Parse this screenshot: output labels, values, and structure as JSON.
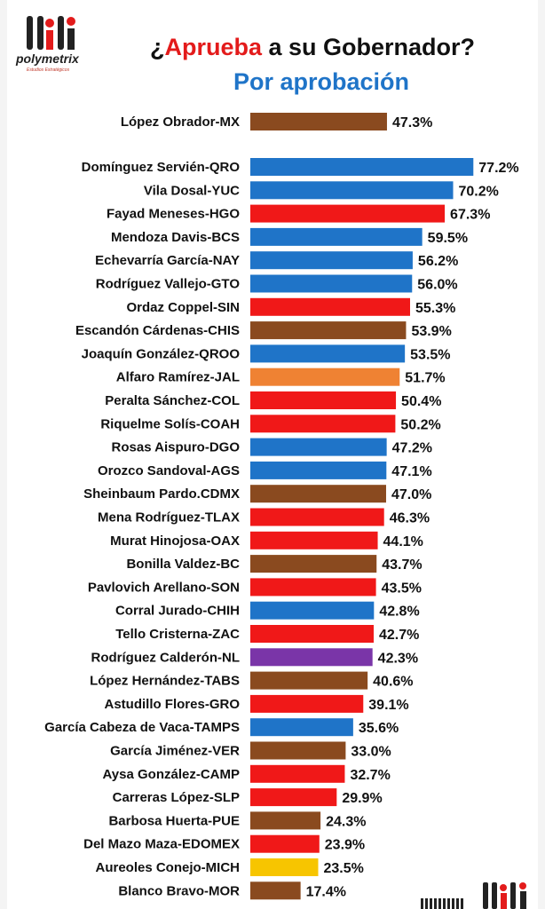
{
  "header": {
    "logo_name": "polymetrix",
    "logo_tagline": "Estudios Estratégicos",
    "title_prefix": "¿",
    "title_accent": "Aprueba",
    "title_rest": " a su Gobernador?",
    "subtitle": "Por aprobación"
  },
  "colors": {
    "brown": "#8a4a1f",
    "blue": "#1f74c8",
    "red": "#f01818",
    "orange": "#ef8233",
    "purple": "#7a35a8",
    "yellow": "#f7c500",
    "accent_red": "#e31b1b"
  },
  "chart_data": {
    "type": "bar",
    "orientation": "horizontal",
    "title": "¿Aprueba a su Gobernador?",
    "subtitle": "Por aprobación",
    "value_suffix": "%",
    "xlim": [
      0,
      80
    ],
    "grid": false,
    "bars": [
      {
        "label": "López Obrador-MX",
        "value": 47.3,
        "display": "47.3%",
        "color": "#8a4a1f"
      },
      {
        "label": "Domínguez Servién-QRO",
        "value": 77.2,
        "display": "77.2%",
        "color": "#1f74c8"
      },
      {
        "label": "Vila Dosal-YUC",
        "value": 70.2,
        "display": "70.2%",
        "color": "#1f74c8"
      },
      {
        "label": "Fayad Meneses-HGO",
        "value": 67.3,
        "display": "67.3%",
        "color": "#f01818"
      },
      {
        "label": "Mendoza Davis-BCS",
        "value": 59.5,
        "display": "59.5%",
        "color": "#1f74c8"
      },
      {
        "label": "Echevarría García-NAY",
        "value": 56.2,
        "display": "56.2%",
        "color": "#1f74c8"
      },
      {
        "label": "Rodríguez Vallejo-GTO",
        "value": 56.0,
        "display": "56.0%",
        "color": "#1f74c8"
      },
      {
        "label": "Ordaz Coppel-SIN",
        "value": 55.3,
        "display": "55.3%",
        "color": "#f01818"
      },
      {
        "label": "Escandón Cárdenas-CHIS",
        "value": 53.9,
        "display": "53.9%",
        "color": "#8a4a1f"
      },
      {
        "label": "Joaquín González-QROO",
        "value": 53.5,
        "display": "53.5%",
        "color": "#1f74c8"
      },
      {
        "label": "Alfaro Ramírez-JAL",
        "value": 51.7,
        "display": "51.7%",
        "color": "#ef8233"
      },
      {
        "label": "Peralta Sánchez-COL",
        "value": 50.4,
        "display": "50.4%",
        "color": "#f01818"
      },
      {
        "label": "Riquelme Solís-COAH",
        "value": 50.2,
        "display": "50.2%",
        "color": "#f01818"
      },
      {
        "label": "Rosas Aispuro-DGO",
        "value": 47.2,
        "display": "47.2%",
        "color": "#1f74c8"
      },
      {
        "label": "Orozco Sandoval-AGS",
        "value": 47.1,
        "display": "47.1%",
        "color": "#1f74c8"
      },
      {
        "label": "Sheinbaum Pardo.CDMX",
        "value": 47.0,
        "display": "47.0%",
        "color": "#8a4a1f"
      },
      {
        "label": "Mena Rodríguez-TLAX",
        "value": 46.3,
        "display": "46.3%",
        "color": "#f01818"
      },
      {
        "label": "Murat Hinojosa-OAX",
        "value": 44.1,
        "display": "44.1%",
        "color": "#f01818"
      },
      {
        "label": "Bonilla Valdez-BC",
        "value": 43.7,
        "display": "43.7%",
        "color": "#8a4a1f"
      },
      {
        "label": "Pavlovich Arellano-SON",
        "value": 43.5,
        "display": "43.5%",
        "color": "#f01818"
      },
      {
        "label": "Corral Jurado-CHIH",
        "value": 42.8,
        "display": "42.8%",
        "color": "#1f74c8"
      },
      {
        "label": "Tello Cristerna-ZAC",
        "value": 42.7,
        "display": "42.7%",
        "color": "#f01818"
      },
      {
        "label": "Rodríguez Calderón-NL",
        "value": 42.3,
        "display": "42.3%",
        "color": "#7a35a8"
      },
      {
        "label": "López Hernández-TABS",
        "value": 40.6,
        "display": "40.6%",
        "color": "#8a4a1f"
      },
      {
        "label": "Astudillo Flores-GRO",
        "value": 39.1,
        "display": "39.1%",
        "color": "#f01818"
      },
      {
        "label": "García Cabeza de Vaca-TAMPS",
        "value": 35.6,
        "display": "35.6%",
        "color": "#1f74c8"
      },
      {
        "label": "García Jiménez-VER",
        "value": 33.0,
        "display": "33.0%",
        "color": "#8a4a1f"
      },
      {
        "label": "Aysa González-CAMP",
        "value": 32.7,
        "display": "32.7%",
        "color": "#f01818"
      },
      {
        "label": "Carreras López-SLP",
        "value": 29.9,
        "display": "29.9%",
        "color": "#f01818"
      },
      {
        "label": "Barbosa Huerta-PUE",
        "value": 24.3,
        "display": "24.3%",
        "color": "#8a4a1f"
      },
      {
        "label": "Del Mazo Maza-EDOMEX",
        "value": 23.9,
        "display": "23.9%",
        "color": "#f01818"
      },
      {
        "label": "Aureoles Conejo-MICH",
        "value": 23.5,
        "display": "23.5%",
        "color": "#f7c500"
      },
      {
        "label": "Blanco Bravo-MOR",
        "value": 17.4,
        "display": "17.4%",
        "color": "#8a4a1f"
      }
    ]
  }
}
